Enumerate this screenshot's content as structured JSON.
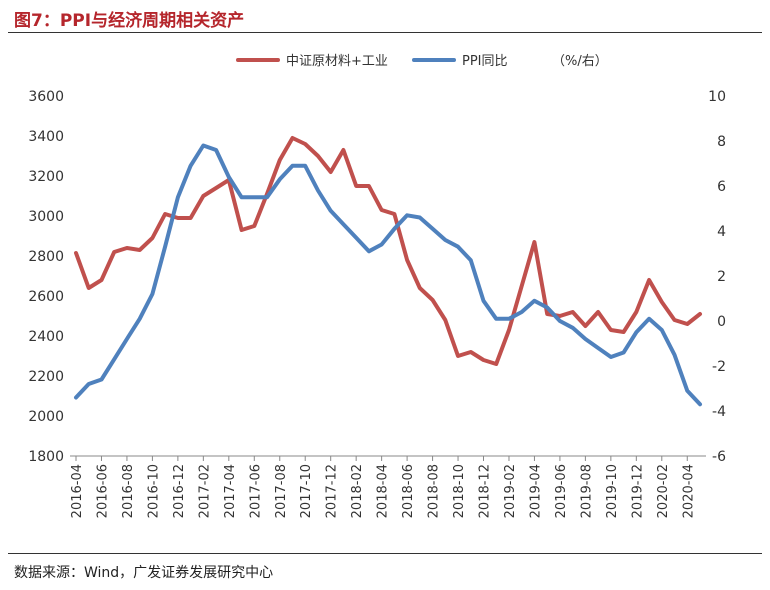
{
  "header": {
    "title": "图7：PPI与经济周期相关资产"
  },
  "footer": {
    "source": "数据来源：Wind，广发证券发展研究中心"
  },
  "chart_data": {
    "type": "line",
    "unit_label": "（%/右）",
    "x": [
      "2016-04",
      "2016-05",
      "2016-06",
      "2016-07",
      "2016-08",
      "2016-09",
      "2016-10",
      "2016-11",
      "2016-12",
      "2017-01",
      "2017-02",
      "2017-03",
      "2017-04",
      "2017-05",
      "2017-06",
      "2017-07",
      "2017-08",
      "2017-09",
      "2017-10",
      "2017-11",
      "2017-12",
      "2018-01",
      "2018-02",
      "2018-03",
      "2018-04",
      "2018-05",
      "2018-06",
      "2018-07",
      "2018-08",
      "2018-09",
      "2018-10",
      "2018-11",
      "2018-12",
      "2019-01",
      "2019-02",
      "2019-03",
      "2019-04",
      "2019-05",
      "2019-06",
      "2019-07",
      "2019-08",
      "2019-09",
      "2019-10",
      "2019-11",
      "2019-12",
      "2020-01",
      "2020-02",
      "2020-03",
      "2020-04",
      "2020-05"
    ],
    "x_ticks": [
      "2016-04",
      "2016-06",
      "2016-08",
      "2016-10",
      "2016-12",
      "2017-02",
      "2017-04",
      "2017-06",
      "2017-08",
      "2017-10",
      "2017-12",
      "2018-02",
      "2018-04",
      "2018-06",
      "2018-08",
      "2018-10",
      "2018-12",
      "2019-02",
      "2019-04",
      "2019-06",
      "2019-08",
      "2019-10",
      "2019-12",
      "2020-02",
      "2020-04"
    ],
    "y_left": {
      "min": 1800,
      "max": 3600,
      "step": 200
    },
    "y_right": {
      "min": -6,
      "max": 10,
      "step": 2
    },
    "series": [
      {
        "name": "中证原材料+工业",
        "axis": "left",
        "color": "#c0504d",
        "values": [
          2815,
          2640,
          2680,
          2820,
          2840,
          2830,
          2890,
          3010,
          2990,
          2990,
          3100,
          3140,
          3180,
          2930,
          2950,
          3110,
          3280,
          3390,
          3360,
          3300,
          3220,
          3330,
          3150,
          3150,
          3030,
          3010,
          2780,
          2640,
          2580,
          2480,
          2300,
          2320,
          2280,
          2260,
          2430,
          2650,
          2870,
          2510,
          2500,
          2520,
          2450,
          2520,
          2430,
          2420,
          2520,
          2680,
          2570,
          2480,
          2460,
          2510
        ]
      },
      {
        "name": "PPI同比",
        "axis": "right",
        "color": "#4f81bd",
        "values": [
          -3.4,
          -2.8,
          -2.6,
          -1.7,
          -0.8,
          0.1,
          1.2,
          3.3,
          5.5,
          6.9,
          7.8,
          7.6,
          6.4,
          5.5,
          5.5,
          5.5,
          6.3,
          6.9,
          6.9,
          5.8,
          4.9,
          4.3,
          3.7,
          3.1,
          3.4,
          4.1,
          4.7,
          4.6,
          4.1,
          3.6,
          3.3,
          2.7,
          0.9,
          0.1,
          0.1,
          0.4,
          0.9,
          0.6,
          0.0,
          -0.3,
          -0.8,
          -1.2,
          -1.6,
          -1.4,
          -0.5,
          0.1,
          -0.4,
          -1.5,
          -3.1,
          -3.7
        ]
      }
    ]
  }
}
